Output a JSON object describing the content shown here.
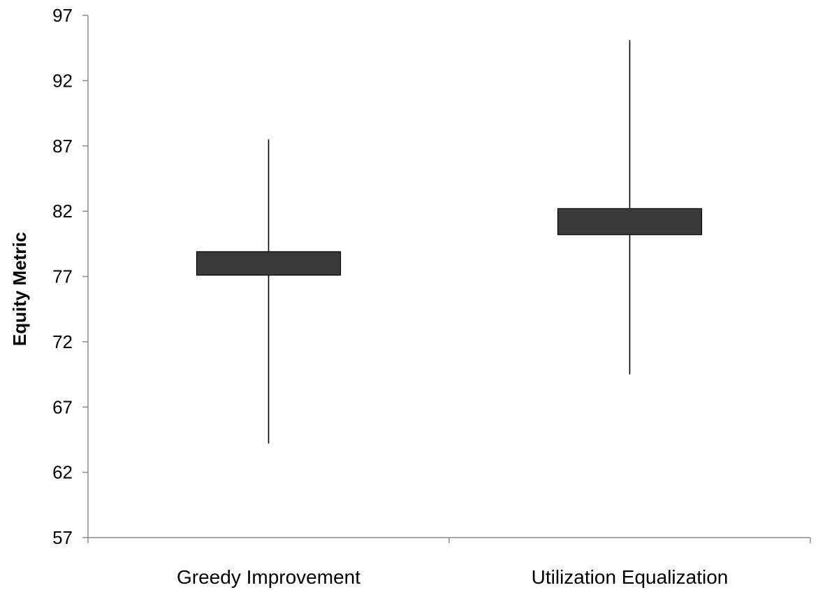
{
  "chart_data": {
    "type": "box",
    "title": "",
    "xlabel": "",
    "ylabel": "Equity Metric",
    "ylim": [
      57,
      97
    ],
    "yticks": [
      57,
      62,
      67,
      72,
      77,
      82,
      87,
      92,
      97
    ],
    "grid": false,
    "legend": "none",
    "box_color": "#3a3a3a",
    "categories": [
      "Greedy Improvement",
      "Utilization Equalization"
    ],
    "series": [
      {
        "values": [
          {
            "min": 64.2,
            "q1": 77.1,
            "q3": 78.9,
            "max": 87.5
          },
          {
            "min": 69.5,
            "q1": 80.2,
            "q3": 82.2,
            "max": 95.1
          }
        ]
      }
    ]
  }
}
